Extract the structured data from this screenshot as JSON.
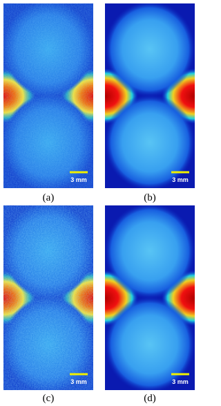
{
  "panels": [
    {
      "label": "(a)",
      "scale_bar": "3 mm"
    },
    {
      "label": "(b)",
      "scale_bar": "3 mm"
    },
    {
      "label": "(c)",
      "scale_bar": "3 mm"
    },
    {
      "label": "(d)",
      "scale_bar": "3 mm"
    }
  ]
}
